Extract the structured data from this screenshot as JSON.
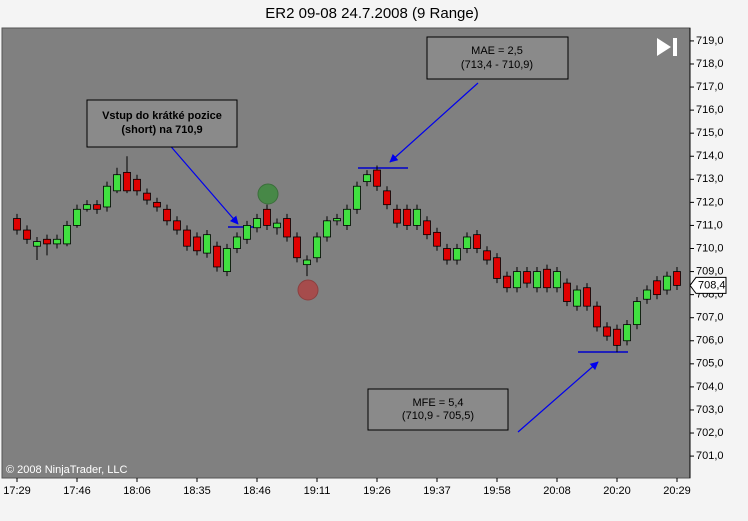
{
  "chart_data": {
    "type": "candlestick",
    "title": "ER2 09-08  24.7.2008 (9 Range)",
    "categories": [
      "17:29",
      null,
      null,
      null,
      null,
      null,
      "17:46",
      null,
      null,
      null,
      null,
      null,
      "18:06",
      null,
      null,
      null,
      null,
      null,
      "18:35",
      null,
      null,
      null,
      null,
      null,
      "18:46",
      null,
      null,
      null,
      null,
      null,
      "19:11",
      null,
      null,
      null,
      null,
      null,
      "19:26",
      null,
      null,
      null,
      null,
      null,
      "19:37",
      null,
      null,
      null,
      null,
      null,
      "19:58",
      null,
      null,
      null,
      null,
      null,
      "20:08",
      null,
      null,
      null,
      null,
      null,
      "20:20",
      null,
      null,
      null,
      null,
      null,
      "20:29"
    ],
    "open": [
      711.3,
      710.8,
      710.1,
      710.4,
      710.2,
      710.2,
      711.0,
      711.7,
      711.9,
      711.8,
      712.5,
      713.3,
      713.0,
      712.4,
      712.0,
      711.7,
      711.2,
      710.8,
      710.5,
      709.8,
      710.1,
      709.0,
      710.0,
      710.4,
      710.9,
      711.7,
      710.9,
      711.3,
      710.5,
      709.3,
      709.6,
      710.5,
      711.2,
      711.0,
      711.7,
      712.9,
      713.4,
      712.5,
      711.7,
      711.7,
      711.0,
      711.2,
      710.7,
      710.0,
      709.5,
      710.0,
      710.6,
      709.9,
      709.6,
      708.8,
      708.3,
      709.0,
      708.3,
      709.1,
      708.3,
      708.5,
      707.5,
      708.3,
      707.5,
      706.6,
      706.5,
      706.0,
      706.7,
      707.8,
      708.6,
      708.2,
      709.0
    ],
    "high": [
      711.5,
      711.0,
      710.5,
      710.6,
      710.6,
      711.2,
      711.9,
      712.1,
      712.1,
      712.9,
      713.5,
      714.0,
      713.2,
      712.6,
      712.2,
      711.9,
      711.4,
      711.0,
      710.7,
      710.8,
      710.3,
      710.2,
      710.7,
      711.2,
      711.5,
      711.9,
      711.3,
      711.5,
      710.7,
      709.7,
      710.7,
      711.4,
      711.5,
      711.9,
      712.9,
      713.4,
      713.6,
      712.7,
      711.9,
      711.9,
      711.9,
      711.4,
      710.9,
      710.2,
      710.2,
      710.7,
      710.8,
      710.1,
      709.8,
      709.0,
      709.2,
      709.2,
      709.2,
      709.3,
      709.2,
      708.7,
      708.4,
      708.5,
      707.7,
      706.8,
      706.7,
      706.9,
      707.9,
      708.4,
      708.8,
      709.0,
      709.2
    ],
    "low": [
      710.6,
      710.2,
      709.5,
      709.7,
      710.0,
      710.1,
      710.9,
      711.6,
      711.5,
      711.6,
      712.4,
      712.4,
      712.3,
      711.9,
      711.6,
      711.0,
      710.6,
      709.9,
      709.7,
      709.6,
      709.0,
      708.8,
      709.8,
      710.2,
      710.7,
      710.8,
      710.6,
      710.3,
      709.4,
      708.8,
      709.4,
      710.3,
      711.0,
      710.8,
      711.5,
      712.7,
      712.5,
      711.7,
      710.9,
      710.8,
      710.8,
      710.4,
      709.9,
      709.3,
      709.3,
      709.8,
      709.8,
      709.3,
      708.5,
      708.1,
      708.1,
      708.3,
      708.1,
      708.1,
      708.1,
      707.5,
      707.3,
      707.3,
      706.4,
      706.0,
      705.5,
      705.8,
      706.5,
      707.6,
      707.8,
      708.0,
      708.2
    ],
    "close": [
      710.8,
      710.4,
      710.3,
      710.2,
      710.4,
      711.0,
      711.7,
      711.9,
      711.7,
      712.7,
      713.2,
      712.5,
      712.5,
      712.1,
      711.8,
      711.2,
      710.8,
      710.1,
      709.9,
      710.6,
      709.2,
      710.0,
      710.5,
      711.0,
      711.3,
      711.0,
      711.1,
      710.5,
      709.6,
      709.5,
      710.5,
      711.2,
      711.3,
      711.7,
      712.7,
      713.2,
      712.7,
      711.9,
      711.1,
      711.0,
      711.7,
      710.6,
      710.1,
      709.5,
      710.0,
      710.5,
      710.0,
      709.5,
      708.7,
      708.3,
      709.0,
      708.5,
      709.0,
      708.3,
      709.0,
      707.7,
      708.2,
      707.5,
      706.6,
      706.2,
      705.8,
      706.7,
      707.7,
      708.2,
      708.0,
      708.8,
      708.4
    ],
    "up_color": "#40e040",
    "down_color": "#e00000",
    "ylim": [
      700.05,
      719.56
    ],
    "yticks": [
      {
        "value": 701,
        "label": "701,0"
      },
      {
        "value": 702,
        "label": "702,0"
      },
      {
        "value": 703,
        "label": "703,0"
      },
      {
        "value": 704,
        "label": "704,0"
      },
      {
        "value": 705,
        "label": "705,0"
      },
      {
        "value": 706,
        "label": "706,0"
      },
      {
        "value": 707,
        "label": "707,0"
      },
      {
        "value": 708,
        "label": "708,0"
      },
      {
        "value": 709,
        "label": "709,0"
      },
      {
        "value": 710,
        "label": "710,0"
      },
      {
        "value": 711,
        "label": "711,0"
      },
      {
        "value": 712,
        "label": "712,0"
      },
      {
        "value": 713,
        "label": "713,0"
      },
      {
        "value": 714,
        "label": "714,0"
      },
      {
        "value": 715,
        "label": "715,0"
      },
      {
        "value": 716,
        "label": "716,0"
      },
      {
        "value": 717,
        "label": "717,0"
      },
      {
        "value": 718,
        "label": "718,0"
      },
      {
        "value": 719,
        "label": "719,0"
      }
    ],
    "last_price": {
      "value": 708.4,
      "label": "708,4"
    },
    "annotations": [
      {
        "lines": [
          "Vstup do krátké pozice",
          "(short) na 710,9"
        ]
      },
      {
        "lines": [
          "MAE = 2,5",
          "(713,4 - 710,9)"
        ]
      },
      {
        "lines": [
          "MFE = 5,4",
          "(710,9 - 705,5)"
        ]
      }
    ],
    "copyright": "© 2008 NinjaTrader, LLC"
  }
}
